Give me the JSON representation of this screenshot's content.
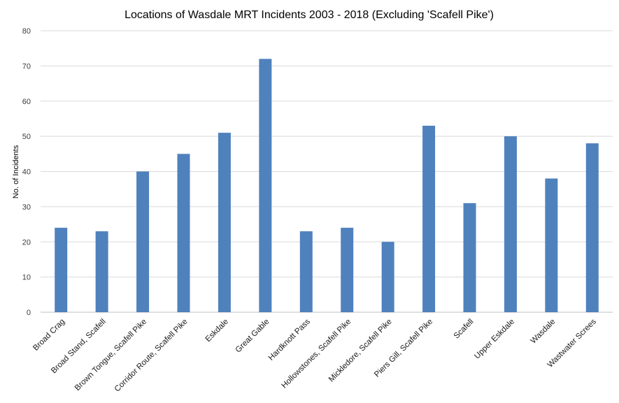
{
  "chart_data": {
    "type": "bar",
    "title": "Locations of Wasdale MRT Incidents 2003 - 2018 (Excluding 'Scafell Pike')",
    "xlabel": "",
    "ylabel": "No. of Incidents",
    "ylim": [
      0,
      80
    ],
    "ytick_step": 10,
    "grid": true,
    "legend": "none",
    "bar_color": "#4f81bd",
    "categories": [
      "Broad Crag",
      "Broad Stand, Scafell",
      "Brown Tongue, Scafell Pike",
      "Corridor Route, Scafell Pike",
      "Eskdale",
      "Great Gable",
      "Hardknott Pass",
      "Hollowstones, Scafell Pike",
      "Mickledore, Scafell Pike",
      "Piers Gill, Scafell Pike",
      "Scafell",
      "Upper Eskdale",
      "Wasdale",
      "Wastwater Screes"
    ],
    "values": [
      24,
      23,
      40,
      45,
      51,
      72,
      23,
      24,
      20,
      53,
      31,
      50,
      38,
      48
    ]
  }
}
